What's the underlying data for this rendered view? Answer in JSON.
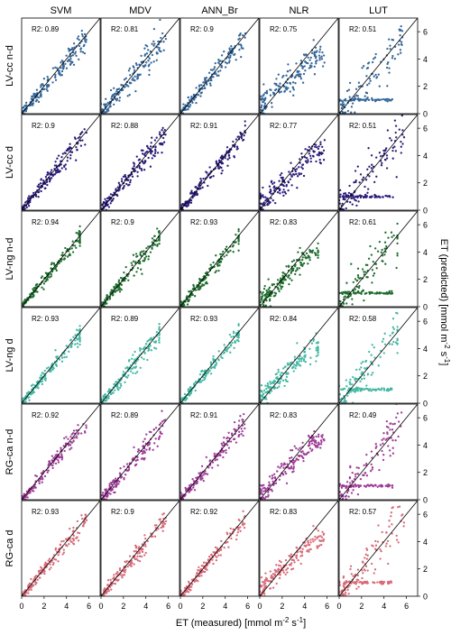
{
  "figure": {
    "xlabel_prefix": "ET (measured) [mmol m",
    "xlabel_exp": "-2",
    "xlabel_mid": " s",
    "xlabel_exp2": "-1",
    "xlabel_suffix": "]",
    "ylabel_prefix": "ET (predicted) [mmol m",
    "ylabel_exp": "-2",
    "ylabel_mid": " s",
    "ylabel_exp2": "-1",
    "ylabel_suffix": "]",
    "r2_prefix": "R2: "
  },
  "chart_data": {
    "type": "scatter",
    "layout": "grid-6x5",
    "columns": [
      "SVM",
      "MDV",
      "ANN_Br",
      "NLR",
      "LUT"
    ],
    "rows": [
      {
        "label": "LV-cc n-d",
        "color": "#336699",
        "r2": [
          "0.89",
          "0.81",
          "0.9",
          "0.75",
          "0.51"
        ]
      },
      {
        "label": "LV-cc d",
        "color": "#2a1a7a",
        "r2": [
          "0.9",
          "0.88",
          "0.91",
          "0.77",
          "0.51"
        ]
      },
      {
        "label": "LV-ng n-d",
        "color": "#1e6e2e",
        "r2": [
          "0.94",
          "0.9",
          "0.93",
          "0.83",
          "0.61"
        ]
      },
      {
        "label": "LV-ng d",
        "color": "#45b8a3",
        "r2": [
          "0.93",
          "0.89",
          "0.93",
          "0.84",
          "0.58"
        ]
      },
      {
        "label": "RG-ca n-d",
        "color": "#a03c98",
        "r2": [
          "0.92",
          "0.89",
          "0.91",
          "0.83",
          "0.49"
        ]
      },
      {
        "label": "RG-ca d",
        "color": "#d86a78",
        "r2": [
          "0.93",
          "0.9",
          "0.92",
          "0.83",
          "0.57"
        ]
      }
    ],
    "x_ticks": [
      "0",
      "2",
      "4",
      "6"
    ],
    "y_ticks": [
      "0",
      "2",
      "4",
      "6"
    ],
    "xlim": [
      0,
      7
    ],
    "ylim": [
      0,
      7
    ],
    "reference_line": "1:1",
    "grid": false
  }
}
